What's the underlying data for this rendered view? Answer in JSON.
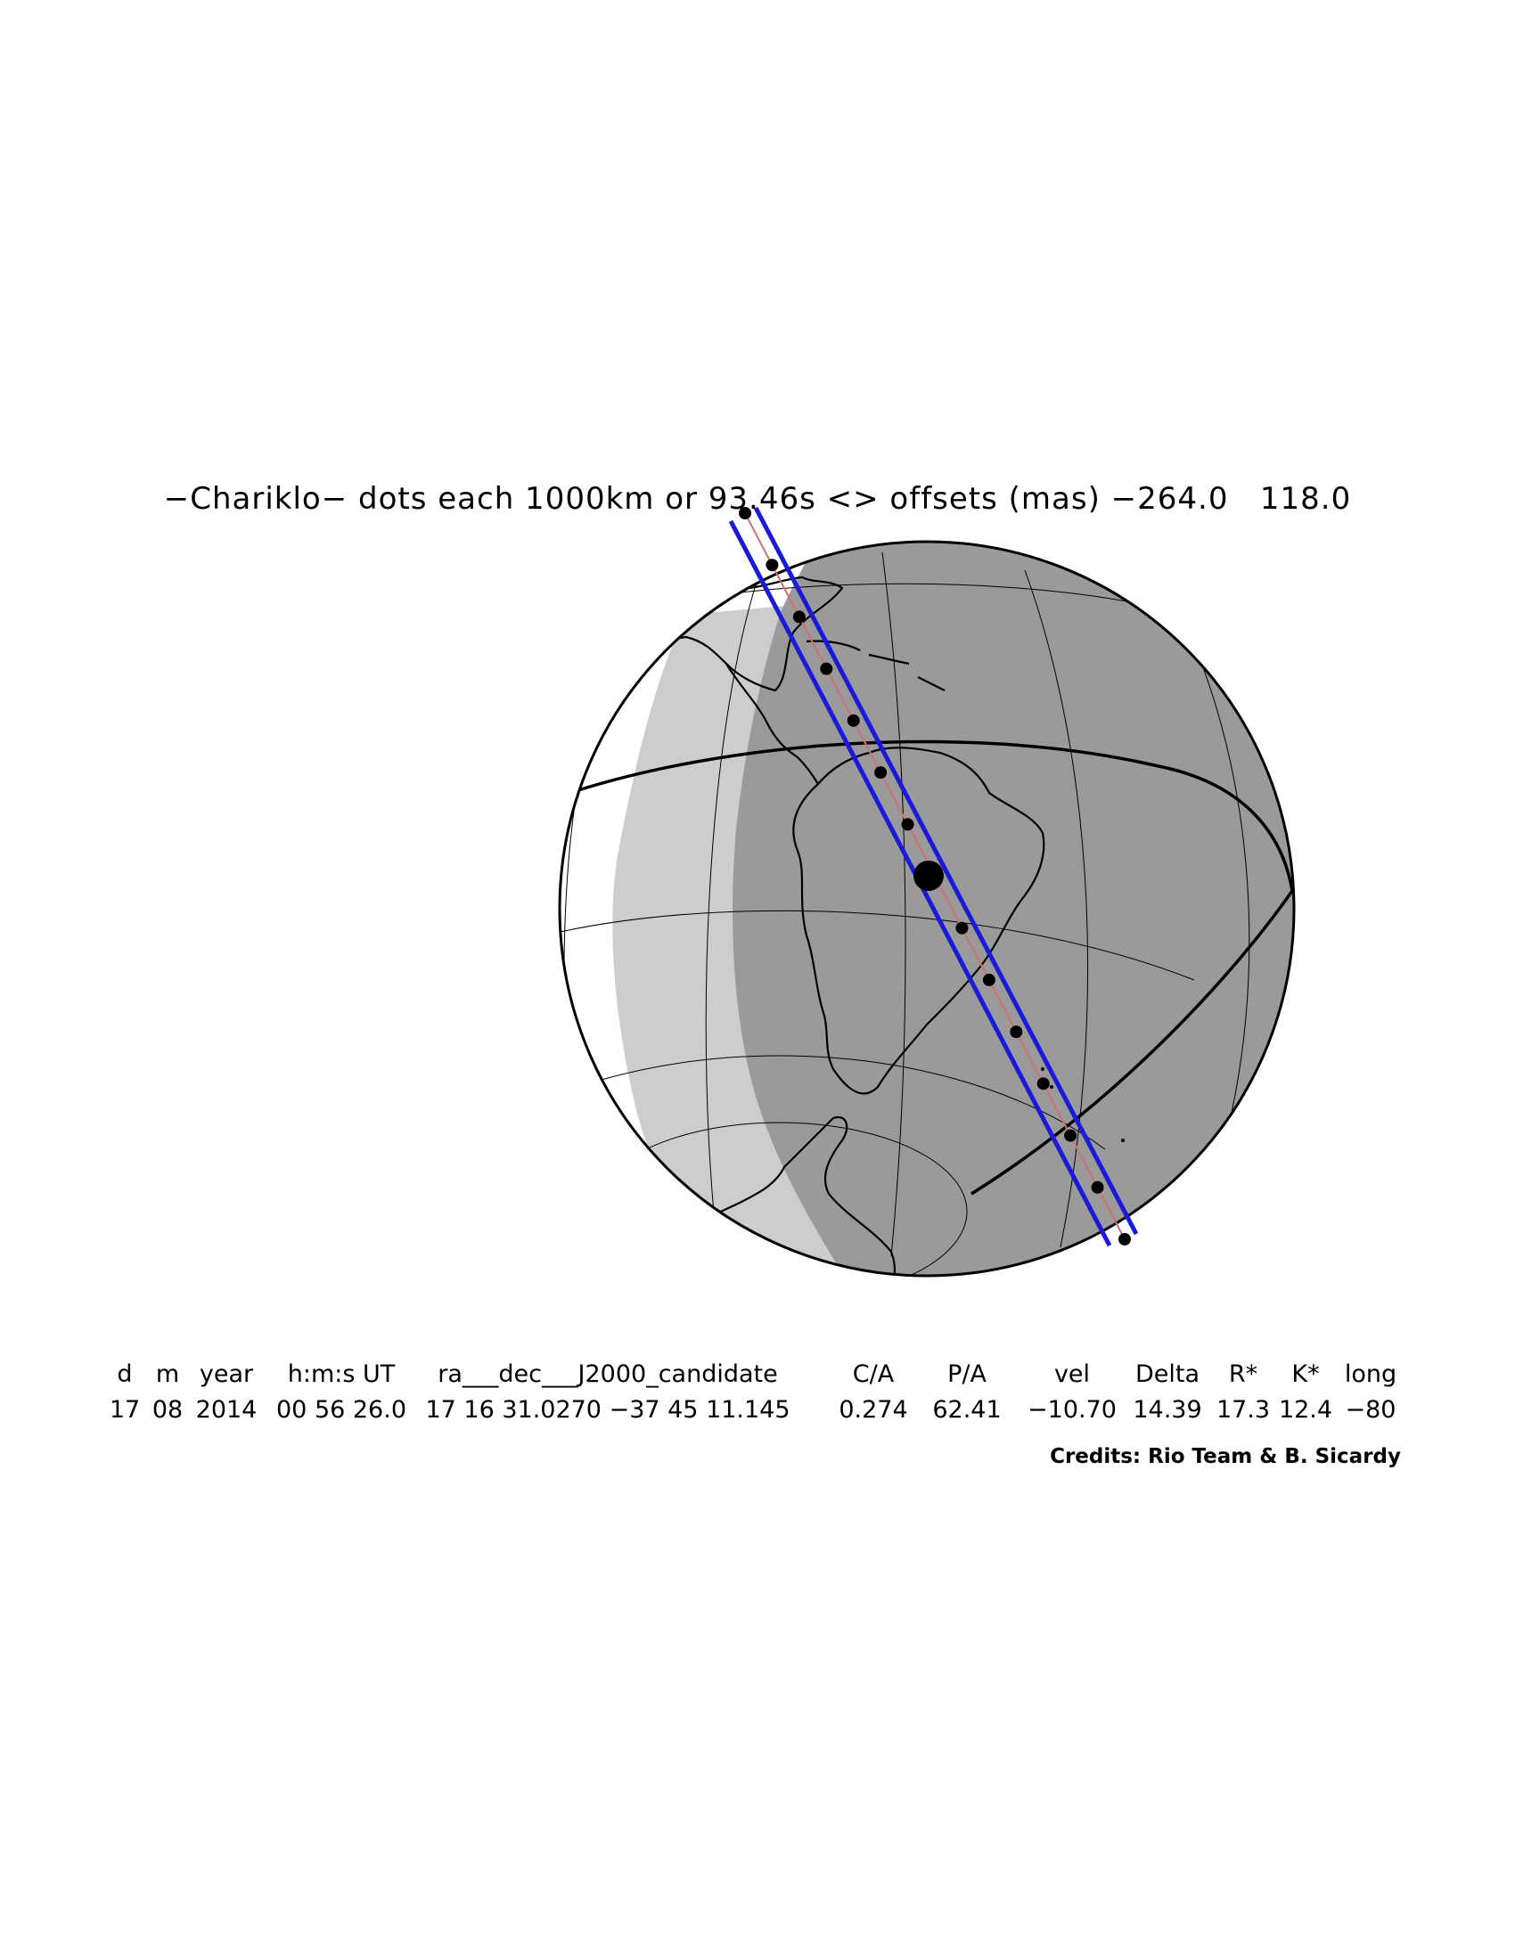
{
  "title": "−Chariklo− dots each 1000km or 93.46s <> offsets (mas) −264.0   118.0",
  "map": {
    "projection": "orthographic",
    "region_shown": [
      "North America (south)",
      "Central America",
      "South America",
      "Antarctica",
      "Pacific Ocean"
    ],
    "night_side": "right",
    "twilight_band": "light gray",
    "night_color": "#9a9a9a",
    "twilight_color": "#cdcdcd",
    "land_outline_color": "#000000",
    "path_color": "#1a1ad8",
    "centerline_color": "#d07070",
    "path_dot_count": 15,
    "central_instant_marker": "large black dot over southern Brazil / Paraguay"
  },
  "parameters": {
    "headers": [
      "d",
      "m",
      "year",
      "h:m:s UT",
      "ra___dec___J2000_candidate",
      "C/A",
      "P/A",
      "vel",
      "Delta",
      "R*",
      "K*",
      "long"
    ],
    "values": [
      "17",
      "08",
      "2014",
      "00 56 26.0",
      "17 16 31.0270 −37 45 11.145",
      "0.274",
      "62.41",
      "−10.70",
      "14.39",
      "17.3",
      "12.4",
      "−80"
    ]
  },
  "credits": "Credits: Rio Team & B. Sicardy"
}
